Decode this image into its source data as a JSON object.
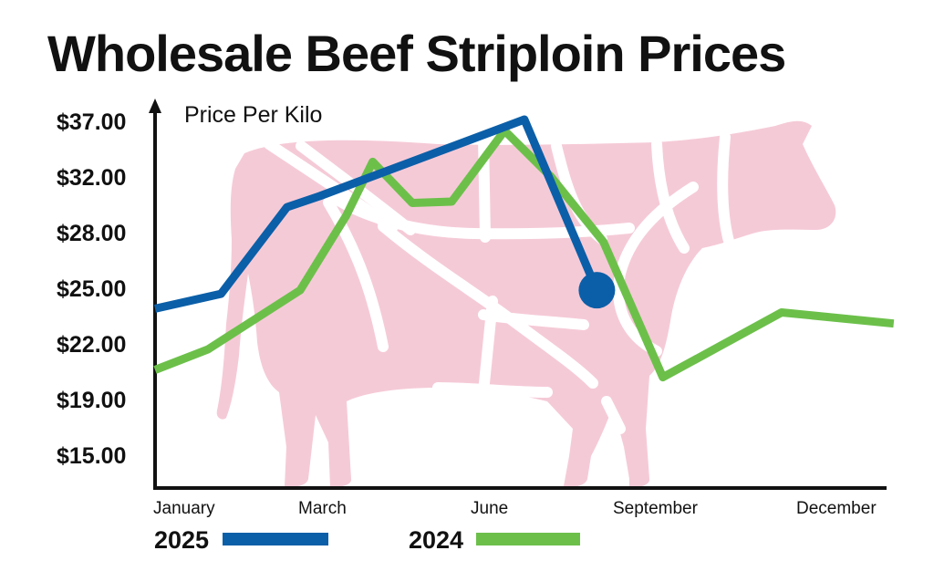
{
  "chart_data": {
    "type": "line",
    "title": "Wholesale Beef Striploin Prices",
    "ylabel": "Price Per Kilo",
    "xlabel": "",
    "x_ticks": [
      "January",
      "March",
      "June",
      "September",
      "December"
    ],
    "y_ticks": [
      "$37.00",
      "$32.00",
      "$28.00",
      "$25.00",
      "$22.00",
      "$19.00",
      "$15.00"
    ],
    "grid": false,
    "legend_position": "bottom",
    "background_illustration": "cow-icon",
    "series": [
      {
        "name": "2025",
        "color": "#0b5fa8",
        "x": [
          1.0,
          2.0,
          3.0,
          3.5,
          6.6,
          7.7
        ],
        "y": [
          23.8,
          24.6,
          29.7,
          30.5,
          37.0,
          24.8
        ],
        "end_marker": true
      },
      {
        "name": "2024",
        "color": "#6cc04a",
        "x": [
          1.0,
          1.8,
          3.2,
          3.9,
          4.3,
          4.9,
          5.5,
          6.3,
          7.0,
          7.8,
          8.7,
          10.5,
          12.2
        ],
        "y": [
          20.5,
          21.6,
          24.8,
          29.1,
          33.2,
          30.0,
          30.1,
          36.0,
          31.9,
          27.4,
          20.1,
          23.6,
          23.0
        ]
      }
    ]
  },
  "legend": [
    {
      "label": "2025",
      "color": "#0b5fa8"
    },
    {
      "label": "2024",
      "color": "#6cc04a"
    }
  ]
}
